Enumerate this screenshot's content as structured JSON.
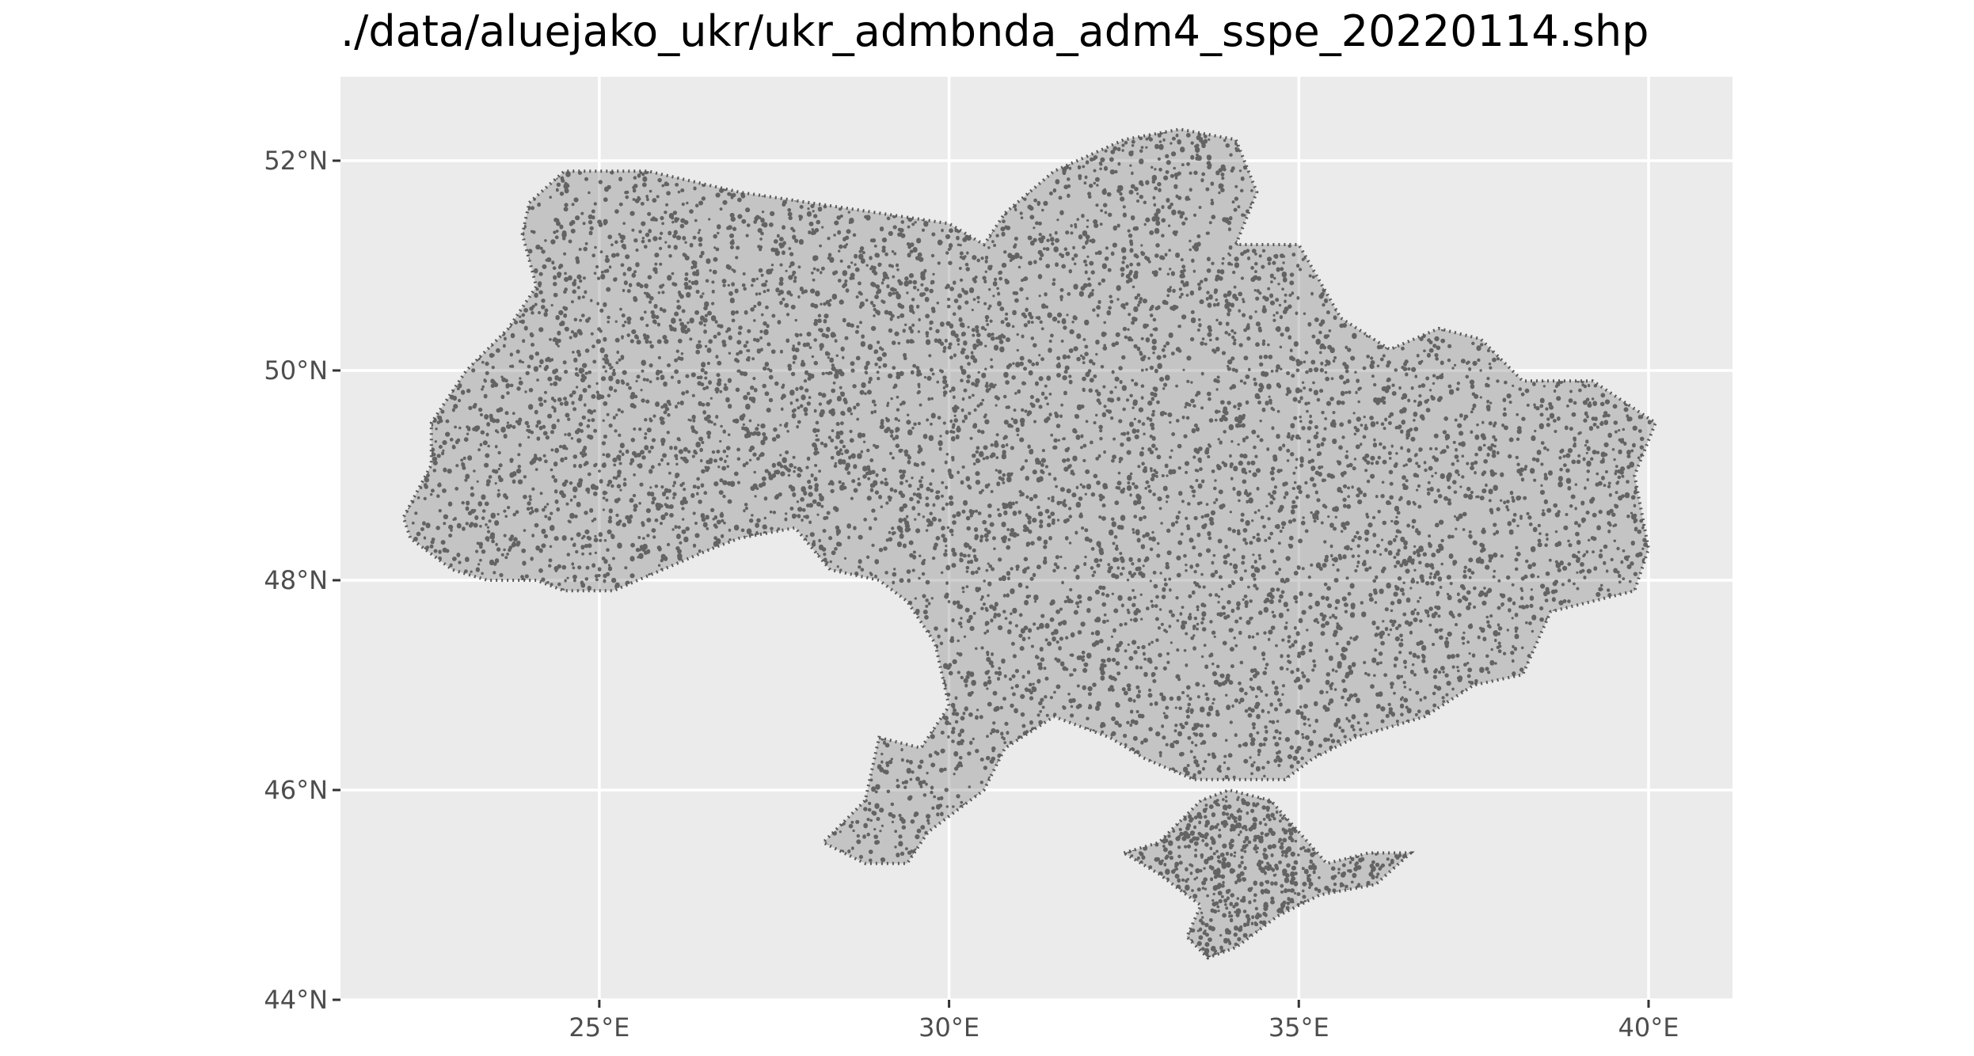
{
  "title": "./data/aluejako_ukr/ukr_admbnda_adm4_sspe_20220114.shp",
  "panel": {
    "background": "#ebebeb",
    "grid": true,
    "grid_color": "#ffffff"
  },
  "chart_data": {
    "type": "scatter",
    "title": "./data/aluejako_ukr/ukr_admbnda_adm4_sspe_20220114.shp",
    "xlabel": "",
    "ylabel": "",
    "xlim": [
      21.3,
      41.2
    ],
    "ylim": [
      44,
      52.8
    ],
    "x_ticks": [
      25,
      30,
      35,
      40
    ],
    "x_tick_labels": [
      "25°E",
      "30°E",
      "35°E",
      "40°E"
    ],
    "y_ticks": [
      44,
      46,
      48,
      50,
      52
    ],
    "y_tick_labels": [
      "44°N",
      "46°N",
      "48°N",
      "50°N",
      "52°N"
    ],
    "point_color": "#595959",
    "series": [
      {
        "region": "mainland",
        "outline_lonlat": [
          [
            24.0,
            51.6
          ],
          [
            24.5,
            51.9
          ],
          [
            25.7,
            51.9
          ],
          [
            27.0,
            51.7
          ],
          [
            28.0,
            51.6
          ],
          [
            29.0,
            51.5
          ],
          [
            30.0,
            51.4
          ],
          [
            30.5,
            51.2
          ],
          [
            30.8,
            51.5
          ],
          [
            31.5,
            51.9
          ],
          [
            32.5,
            52.2
          ],
          [
            33.3,
            52.3
          ],
          [
            34.1,
            52.2
          ],
          [
            34.4,
            51.7
          ],
          [
            34.1,
            51.2
          ],
          [
            35.0,
            51.2
          ],
          [
            35.6,
            50.5
          ],
          [
            36.3,
            50.2
          ],
          [
            37.0,
            50.4
          ],
          [
            37.6,
            50.3
          ],
          [
            38.2,
            49.9
          ],
          [
            39.2,
            49.9
          ],
          [
            40.1,
            49.5
          ],
          [
            39.8,
            49.0
          ],
          [
            40.0,
            48.3
          ],
          [
            39.8,
            47.9
          ],
          [
            38.6,
            47.7
          ],
          [
            38.2,
            47.1
          ],
          [
            37.5,
            47.0
          ],
          [
            36.8,
            46.7
          ],
          [
            35.8,
            46.5
          ],
          [
            35.2,
            46.3
          ],
          [
            34.8,
            46.1
          ],
          [
            33.5,
            46.1
          ],
          [
            32.8,
            46.3
          ],
          [
            32.3,
            46.5
          ],
          [
            31.5,
            46.7
          ],
          [
            30.8,
            46.4
          ],
          [
            30.5,
            46.0
          ],
          [
            30.1,
            45.8
          ],
          [
            29.7,
            45.6
          ],
          [
            29.4,
            45.3
          ],
          [
            28.8,
            45.3
          ],
          [
            28.2,
            45.5
          ],
          [
            28.8,
            45.9
          ],
          [
            29.0,
            46.5
          ],
          [
            29.6,
            46.4
          ],
          [
            30.0,
            46.8
          ],
          [
            29.8,
            47.4
          ],
          [
            29.4,
            47.8
          ],
          [
            29.0,
            48.0
          ],
          [
            28.3,
            48.1
          ],
          [
            27.8,
            48.5
          ],
          [
            27.0,
            48.4
          ],
          [
            26.6,
            48.3
          ],
          [
            25.9,
            48.1
          ],
          [
            25.2,
            47.9
          ],
          [
            24.5,
            47.9
          ],
          [
            24.1,
            48.0
          ],
          [
            23.4,
            48.0
          ],
          [
            22.9,
            48.1
          ],
          [
            22.3,
            48.4
          ],
          [
            22.2,
            48.6
          ],
          [
            22.6,
            49.1
          ],
          [
            22.6,
            49.5
          ],
          [
            23.1,
            50.0
          ],
          [
            23.7,
            50.4
          ],
          [
            24.1,
            50.8
          ],
          [
            23.9,
            51.3
          ]
        ]
      },
      {
        "region": "crimea",
        "outline_lonlat": [
          [
            32.5,
            45.4
          ],
          [
            33.0,
            45.5
          ],
          [
            33.6,
            45.9
          ],
          [
            34.0,
            46.0
          ],
          [
            34.6,
            45.9
          ],
          [
            35.0,
            45.6
          ],
          [
            35.4,
            45.3
          ],
          [
            36.0,
            45.4
          ],
          [
            36.6,
            45.4
          ],
          [
            36.1,
            45.1
          ],
          [
            35.3,
            45.0
          ],
          [
            34.7,
            44.8
          ],
          [
            34.1,
            44.5
          ],
          [
            33.7,
            44.4
          ],
          [
            33.4,
            44.6
          ],
          [
            33.6,
            44.9
          ],
          [
            33.0,
            45.2
          ]
        ]
      }
    ]
  }
}
